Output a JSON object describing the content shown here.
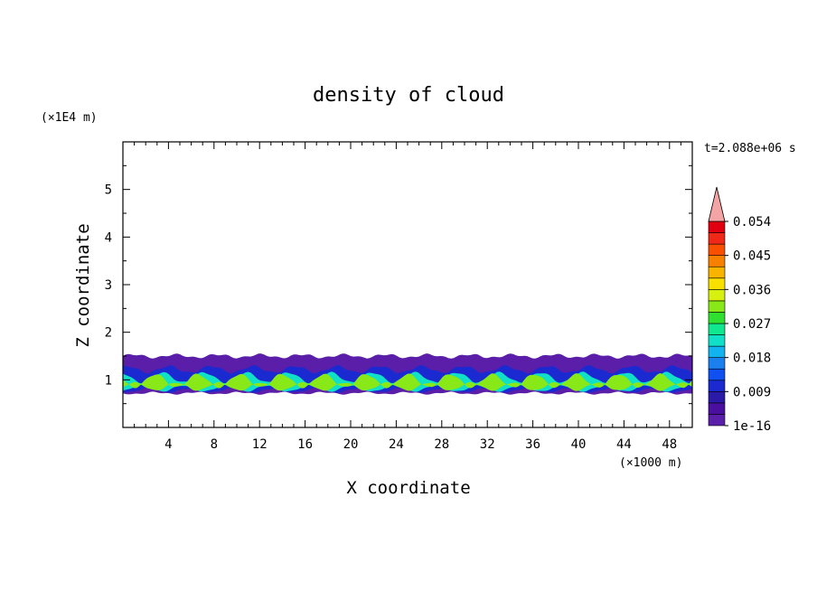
{
  "chart_data": {
    "type": "heatmap",
    "title": "density of cloud",
    "xlabel": "X coordinate",
    "ylabel": "Z coordinate",
    "x_unit": "(×1000 m)",
    "y_unit": "(×1E4 m)",
    "time_label": "t=2.088e+06 s",
    "xlim": [
      0,
      50
    ],
    "ylim": [
      0,
      6
    ],
    "x_ticks": [
      "4",
      "8",
      "12",
      "16",
      "20",
      "24",
      "28",
      "32",
      "36",
      "40",
      "44",
      "48"
    ],
    "y_ticks": [
      "1",
      "2",
      "3",
      "4",
      "5"
    ],
    "colorbar": {
      "min": 1e-16,
      "max": 0.06,
      "extend": "max",
      "tick_labels": [
        "1e-16",
        "0.009",
        "0.018",
        "0.027",
        "0.036",
        "0.045",
        "0.054"
      ],
      "colors": [
        "#5a1ea8",
        "#4b0fa0",
        "#2b1aa8",
        "#1a2ad0",
        "#1050f0",
        "#1a80f0",
        "#12b4f0",
        "#10e0c8",
        "#10e890",
        "#30e030",
        "#88e818",
        "#d8f010",
        "#f8e000",
        "#f8b400",
        "#f88000",
        "#f85000",
        "#f02818",
        "#e00010"
      ],
      "extend_color": "#f4a4a4"
    },
    "field": {
      "description": "stratiform cloud layer",
      "layers": [
        {
          "z_bottom": 0.72,
          "z_top": 1.5,
          "value": 0.002
        },
        {
          "z_bottom": 0.78,
          "z_top": 1.22,
          "value": 0.012
        },
        {
          "z_bottom": 0.82,
          "z_top": 1.05,
          "value": 0.024
        },
        {
          "z_bottom": 0.86,
          "z_top": 0.98,
          "value": 0.036
        }
      ]
    }
  }
}
